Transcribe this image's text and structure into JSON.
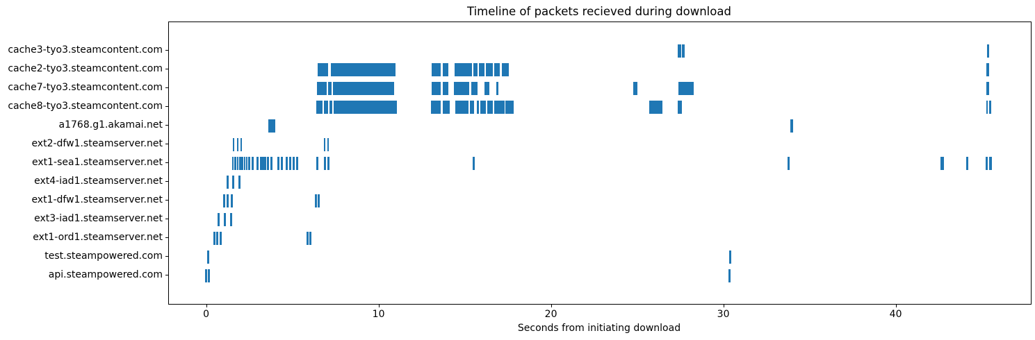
{
  "chart_data": {
    "type": "eventplot",
    "title": "Timeline of packets recieved during download",
    "xlabel": "Seconds from initiating download",
    "ylabel": "",
    "xlim": [
      -2.2,
      47.8
    ],
    "xticks": [
      0,
      10,
      20,
      30,
      40
    ],
    "xtick_labels": [
      "0",
      "10",
      "20",
      "30",
      "40"
    ],
    "grid": false,
    "legend": null,
    "mark_color": "#1f77b4",
    "hosts": [
      {
        "name": "cache3-tyo3.steamcontent.com",
        "events": [
          [
            27.3,
            27.5
          ],
          [
            27.56,
            27.73
          ],
          [
            45.25,
            45.4
          ]
        ]
      },
      {
        "name": "cache2-tyo3.steamcontent.com",
        "events": [
          [
            6.41,
            7.04
          ],
          [
            7.18,
            10.94
          ],
          [
            13.06,
            13.56
          ],
          [
            13.7,
            14.03
          ],
          [
            14.37,
            15.38
          ],
          [
            15.44,
            15.71
          ],
          [
            15.78,
            16.12
          ],
          [
            16.18,
            16.59
          ],
          [
            16.65,
            16.99
          ],
          [
            17.12,
            17.53
          ],
          [
            45.22,
            45.37
          ]
        ]
      },
      {
        "name": "cache7-tyo3.steamcontent.com",
        "events": [
          [
            6.37,
            6.95
          ],
          [
            7.02,
            7.24
          ],
          [
            7.31,
            10.85
          ],
          [
            13.02,
            13.56
          ],
          [
            13.67,
            14.03
          ],
          [
            14.33,
            15.24
          ],
          [
            15.35,
            15.71
          ],
          [
            16.12,
            16.38
          ],
          [
            16.79,
            16.9
          ],
          [
            24.72,
            24.96
          ],
          [
            27.34,
            28.23
          ],
          [
            45.21,
            45.37
          ]
        ]
      },
      {
        "name": "cache8-tyo3.steamcontent.com",
        "events": [
          [
            6.33,
            6.71
          ],
          [
            6.77,
            7.04
          ],
          [
            7.11,
            7.27
          ],
          [
            7.35,
            11.01
          ],
          [
            12.98,
            13.56
          ],
          [
            13.7,
            14.1
          ],
          [
            14.41,
            15.18
          ],
          [
            15.24,
            15.51
          ],
          [
            15.65,
            15.78
          ],
          [
            15.85,
            16.18
          ],
          [
            16.25,
            16.59
          ],
          [
            16.65,
            17.26
          ],
          [
            17.33,
            17.8
          ],
          [
            25.65,
            26.45
          ],
          [
            27.3,
            27.54
          ],
          [
            45.21,
            45.29
          ],
          [
            45.37,
            45.49
          ]
        ]
      },
      {
        "name": "a1768.g1.akamai.net",
        "events": [
          [
            3.56,
            3.99
          ],
          [
            33.85,
            34.01
          ]
        ]
      },
      {
        "name": "ext2-dfw1.steamserver.net",
        "events": [
          [
            1.49,
            1.6
          ],
          [
            1.73,
            1.84
          ],
          [
            1.94,
            2.04
          ],
          [
            6.77,
            6.87
          ],
          [
            6.98,
            7.08
          ]
        ]
      },
      {
        "name": "ext1-sea1.steamserver.net",
        "events": [
          [
            1.46,
            1.56
          ],
          [
            1.6,
            1.7
          ],
          [
            1.74,
            1.84
          ],
          [
            1.88,
            1.97
          ],
          [
            2.01,
            2.1
          ],
          [
            2.14,
            2.23
          ],
          [
            2.27,
            2.36
          ],
          [
            2.4,
            2.49
          ],
          [
            2.61,
            2.74
          ],
          [
            2.88,
            3.0
          ],
          [
            3.07,
            3.43
          ],
          [
            3.49,
            3.61
          ],
          [
            3.68,
            3.8
          ],
          [
            4.08,
            4.21
          ],
          [
            4.28,
            4.41
          ],
          [
            4.56,
            4.68
          ],
          [
            4.76,
            4.88
          ],
          [
            4.96,
            5.08
          ],
          [
            5.16,
            5.29
          ],
          [
            6.36,
            6.48
          ],
          [
            6.78,
            6.9
          ],
          [
            7.0,
            7.12
          ],
          [
            15.42,
            15.54
          ],
          [
            33.68,
            33.8
          ],
          [
            42.55,
            42.76
          ],
          [
            44.06,
            44.18
          ],
          [
            45.19,
            45.31
          ],
          [
            45.38,
            45.52
          ]
        ]
      },
      {
        "name": "ext4-iad1.steamserver.net",
        "events": [
          [
            1.13,
            1.26
          ],
          [
            1.46,
            1.6
          ],
          [
            1.82,
            1.95
          ]
        ]
      },
      {
        "name": "ext1-dfw1.steamserver.net",
        "events": [
          [
            0.95,
            1.07
          ],
          [
            1.16,
            1.28
          ],
          [
            1.37,
            1.49
          ],
          [
            6.28,
            6.4
          ],
          [
            6.44,
            6.56
          ]
        ]
      },
      {
        "name": "ext3-iad1.steamserver.net",
        "events": [
          [
            0.64,
            0.76
          ],
          [
            1.0,
            1.12
          ],
          [
            1.34,
            1.48
          ]
        ]
      },
      {
        "name": "ext1-ord1.steamserver.net",
        "events": [
          [
            0.36,
            0.49
          ],
          [
            0.55,
            0.67
          ],
          [
            0.73,
            0.86
          ],
          [
            5.79,
            5.91
          ],
          [
            5.95,
            6.08
          ]
        ]
      },
      {
        "name": "test.steampowered.com",
        "events": [
          [
            0.0,
            0.12
          ],
          [
            30.28,
            30.4
          ]
        ]
      },
      {
        "name": "api.steampowered.com",
        "events": [
          [
            -0.12,
            0.0
          ],
          [
            0.04,
            0.16
          ],
          [
            30.24,
            30.36
          ]
        ]
      }
    ]
  }
}
